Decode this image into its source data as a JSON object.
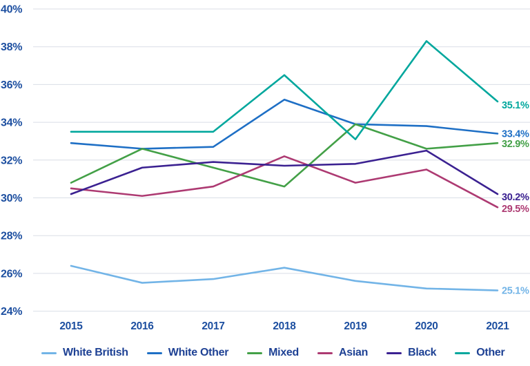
{
  "chart_data": {
    "type": "line",
    "title": "",
    "xlabel": "",
    "ylabel": "",
    "categories": [
      "2015",
      "2016",
      "2017",
      "2018",
      "2019",
      "2020",
      "2021"
    ],
    "y_axis": {
      "unit": "%",
      "min": 24,
      "max": 40,
      "tick_values": [
        40,
        38,
        36,
        34,
        32,
        30,
        28,
        26,
        24
      ],
      "tick_labels": [
        "40%",
        "38%",
        "36%",
        "34%",
        "32%",
        "30%",
        "28%",
        "26%",
        "24%"
      ]
    },
    "grid": "horizontal",
    "legend_position": "bottom",
    "text_color": "#1d4fa0",
    "grid_color": "#d9dee6",
    "series": [
      {
        "name": "White British",
        "color": "#72b4e7",
        "values": [
          26.4,
          25.5,
          25.7,
          26.3,
          25.6,
          25.2,
          25.1
        ],
        "end_label": "25.1%"
      },
      {
        "name": "White Other",
        "color": "#1e6fc5",
        "values": [
          32.9,
          32.6,
          32.7,
          35.2,
          33.9,
          33.8,
          33.4
        ],
        "end_label": "33.4%"
      },
      {
        "name": "Mixed",
        "color": "#43a047",
        "values": [
          30.8,
          32.6,
          31.6,
          30.6,
          33.9,
          32.6,
          32.9
        ],
        "end_label": "32.9%"
      },
      {
        "name": "Asian",
        "color": "#ad3a72",
        "values": [
          30.5,
          30.1,
          30.6,
          32.2,
          30.8,
          31.5,
          29.5
        ],
        "end_label": "29.5%"
      },
      {
        "name": "Black",
        "color": "#3b2191",
        "values": [
          30.2,
          31.6,
          31.9,
          31.7,
          31.8,
          32.5,
          30.2
        ],
        "end_label": "30.2%"
      },
      {
        "name": "Other",
        "color": "#00a79d",
        "values": [
          33.5,
          33.5,
          33.5,
          36.5,
          33.1,
          38.3,
          35.1
        ],
        "end_label": "35.1%"
      }
    ]
  }
}
